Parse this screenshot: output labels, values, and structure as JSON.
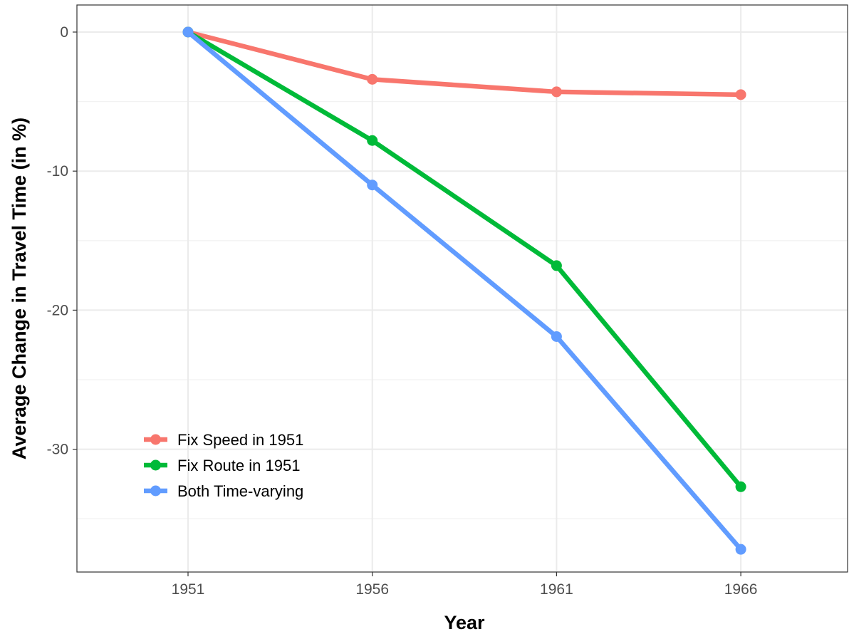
{
  "chart_data": {
    "type": "line",
    "title": "",
    "xlabel": "Year",
    "ylabel": "Average Change in Travel Time (in %)",
    "x": [
      1951,
      1956,
      1961,
      1966
    ],
    "x_tick_labels": [
      "1951",
      "1956",
      "1961",
      "1966"
    ],
    "xlim": [
      1948,
      1966
    ],
    "ylim": [
      -39,
      2
    ],
    "y_ticks": [
      0,
      -10,
      -20,
      -30
    ],
    "y_tick_labels": [
      "0",
      "-10",
      "-20",
      "-30"
    ],
    "grid": true,
    "legend_position": "bottom-left",
    "series": [
      {
        "name": "Fix Speed in 1951",
        "color": "#F8766D",
        "values": [
          0,
          -3.4,
          -4.3,
          -4.5
        ]
      },
      {
        "name": "Fix Route in 1951",
        "color": "#00BA38",
        "values": [
          0,
          -7.8,
          -16.8,
          -32.7
        ]
      },
      {
        "name": "Both Time-varying",
        "color": "#619CFF",
        "values": [
          0,
          -11.0,
          -21.9,
          -37.2
        ]
      }
    ]
  }
}
